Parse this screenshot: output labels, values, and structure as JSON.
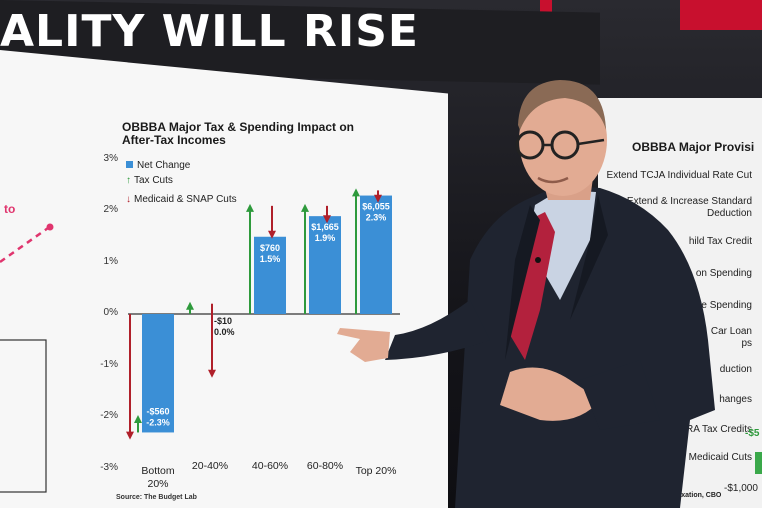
{
  "banner": {
    "headline": "ALITY WILL RISE"
  },
  "left_panel": {
    "partial_label": "to"
  },
  "chart_data": {
    "type": "bar",
    "title": "OBBBA Major Tax & Spending Impact on After-Tax Incomes",
    "legend": [
      "Net Change",
      "Tax Cuts",
      "Medicaid & SNAP Cuts"
    ],
    "categories": [
      "Bottom 20%",
      "20-40%",
      "40-60%",
      "60-80%",
      "Top 20%"
    ],
    "series": [
      {
        "name": "Net Change",
        "values": [
          -2.3,
          0.0,
          1.5,
          1.9,
          2.3
        ],
        "labels": [
          "-$560\n-2.3%",
          "-$10\n0.0%",
          "$760\n1.5%",
          "$1,665\n1.9%",
          "$6,055\n2.3%"
        ]
      },
      {
        "name": "Tax Cuts",
        "values": [
          0.3,
          0.2,
          2.1,
          2.1,
          2.4
        ]
      },
      {
        "name": "Medicaid & SNAP Cuts",
        "values": [
          -2.4,
          -1.4,
          -0.6,
          -0.3,
          -0.2
        ]
      }
    ],
    "yticks": [
      "3%",
      "2%",
      "1%",
      "0%",
      "-1%",
      "-2%",
      "-3%"
    ],
    "ylim": [
      -3,
      3
    ],
    "source": "Source: The Budget Lab"
  },
  "right_panel": {
    "title": "OBBBA Major Provisi",
    "items": [
      "Extend TCJA Individual Rate Cut",
      "Extend & Increase Standard\nDeduction",
      "hild Tax Credit",
      "on Spending",
      "e Spending",
      "Car Loan\nps",
      "duction",
      "hanges",
      "se Out IRA Tax Credits",
      "Medicaid Cuts"
    ],
    "value_fragment": "-$5",
    "axis_fragment": "-$1,000",
    "source": "Committee on Taxation, CBO"
  },
  "colors": {
    "bar": "#3b8fd6",
    "tax_cut_arrow": "#2e9a3c",
    "medicaid_arrow": "#b0202a",
    "banner": "#1e1e22",
    "accent_red": "#c8102e"
  }
}
